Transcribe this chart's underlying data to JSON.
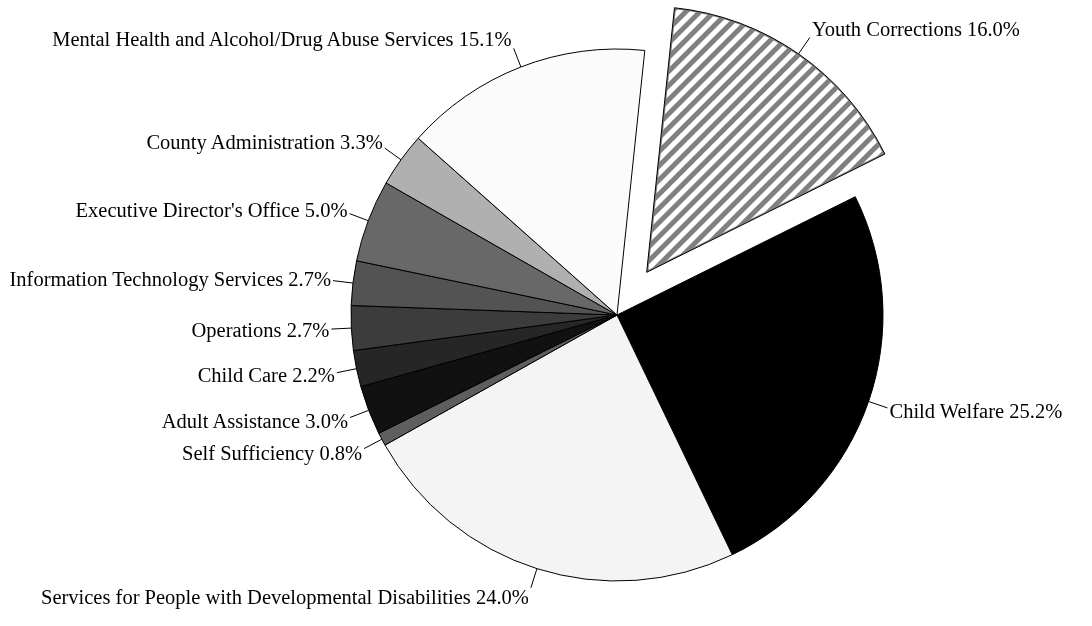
{
  "chart_data": {
    "type": "pie",
    "categories": [
      "Youth Corrections",
      "Child Welfare",
      "Services for People with Developmental Disabilities",
      "Self Sufficiency",
      "Adult Assistance",
      "Child Care",
      "Operations",
      "Information Technology Services",
      "Executive Director's Office",
      "County Administration",
      "Mental Health and Alcohol/Drug Abuse Services"
    ],
    "values": [
      16.0,
      25.2,
      24.0,
      0.8,
      3.0,
      2.2,
      2.7,
      2.7,
      5.0,
      3.3,
      15.1
    ],
    "colors": [
      "#808080",
      "#000000",
      "#f4f4f4",
      "#5e5e5e",
      "#111111",
      "#262626",
      "#3c3c3c",
      "#535353",
      "#686868",
      "#b0b0b0",
      "#fbfbfb"
    ],
    "value_labels": [
      "16.0%",
      "25.2%",
      "24.0%",
      "0.8%",
      "3.0%",
      "2.2%",
      "2.7%",
      "2.7%",
      "5.0%",
      "3.3%",
      "15.1%"
    ]
  }
}
